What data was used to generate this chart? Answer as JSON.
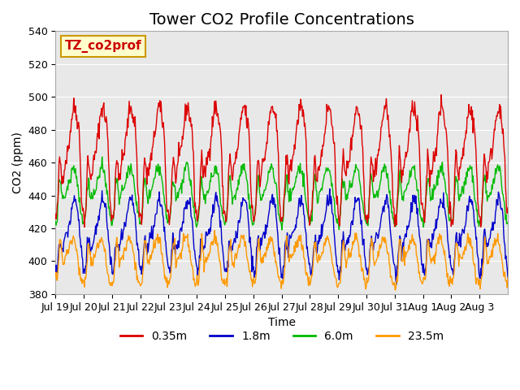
{
  "title": "Tower CO2 Profile Concentrations",
  "xlabel": "Time",
  "ylabel": "CO2 (ppm)",
  "ylim": [
    380,
    540
  ],
  "yticks": [
    380,
    400,
    420,
    440,
    460,
    480,
    500,
    520,
    540
  ],
  "xtick_labels": [
    "Jul 19",
    "Jul 20",
    "Jul 21",
    "Jul 22",
    "Jul 23",
    "Jul 24",
    "Jul 25",
    "Jul 26",
    "Jul 27",
    "Jul 28",
    "Jul 29",
    "Jul 30",
    "Jul 31",
    "Aug 1",
    "Aug 2",
    "Aug 3"
  ],
  "colors": {
    "0.35m": "#dd0000",
    "1.8m": "#0000cc",
    "6.0m": "#00bb00",
    "23.5m": "#ff9900"
  },
  "legend_labels": [
    "0.35m",
    "1.8m",
    "6.0m",
    "23.5m"
  ],
  "annotation_text": "TZ_co2prof",
  "annotation_color": "#cc0000",
  "annotation_bg": "#ffffcc",
  "annotation_border": "#cc9900",
  "bg_color": "#e8e8e8",
  "title_fontsize": 14,
  "axis_fontsize": 10,
  "tick_fontsize": 9,
  "legend_fontsize": 10
}
